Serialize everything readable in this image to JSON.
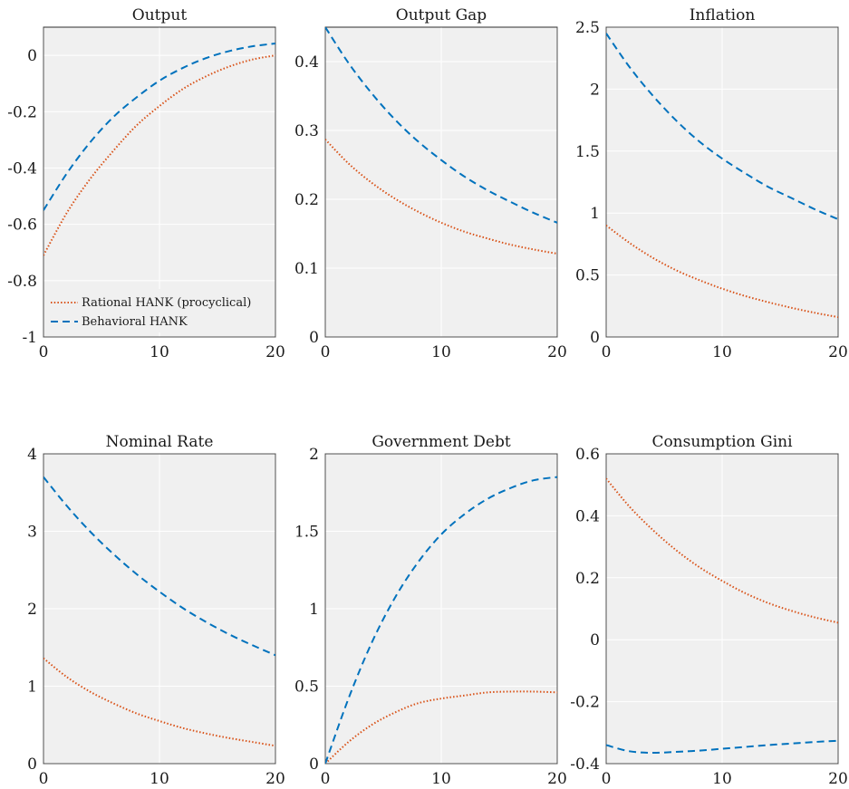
{
  "series_styles": [
    {
      "name": "Rational HANK (procyclical)",
      "color": "#d95319",
      "dash": "dotted"
    },
    {
      "name": "Behavioral HANK",
      "color": "#0072bd",
      "dash": "dashed"
    }
  ],
  "chart_data": [
    {
      "type": "line",
      "title": "Output",
      "xlim": [
        0,
        20
      ],
      "ylim": [
        -1,
        0.1
      ],
      "xticks": [
        0,
        10,
        20
      ],
      "yticks": [
        -1,
        -0.8,
        -0.6,
        -0.4,
        -0.2,
        0
      ],
      "ytick_labels": [
        "-1",
        "-0.8",
        "-0.6",
        "-0.4",
        "-0.2",
        "0"
      ],
      "grid": true,
      "legend": "bottom-left",
      "x": [
        0,
        2,
        4,
        6,
        8,
        10,
        12,
        14,
        16,
        18,
        20
      ],
      "series": [
        {
          "name": "Rational HANK (procyclical)",
          "values": [
            -0.71,
            -0.56,
            -0.44,
            -0.34,
            -0.25,
            -0.18,
            -0.12,
            -0.075,
            -0.04,
            -0.015,
            0.0
          ]
        },
        {
          "name": "Behavioral HANK",
          "values": [
            -0.55,
            -0.42,
            -0.31,
            -0.22,
            -0.15,
            -0.09,
            -0.045,
            -0.01,
            0.015,
            0.032,
            0.042
          ]
        }
      ]
    },
    {
      "type": "line",
      "title": "Output Gap",
      "xlim": [
        0,
        20
      ],
      "ylim": [
        0,
        0.45
      ],
      "xticks": [
        0,
        10,
        20
      ],
      "yticks": [
        0,
        0.1,
        0.2,
        0.3,
        0.4
      ],
      "ytick_labels": [
        "0",
        "0.1",
        "0.2",
        "0.3",
        "0.4"
      ],
      "grid": true,
      "x": [
        0,
        2,
        4,
        6,
        8,
        10,
        12,
        14,
        16,
        18,
        20
      ],
      "series": [
        {
          "name": "Rational HANK (procyclical)",
          "values": [
            0.287,
            0.252,
            0.224,
            0.201,
            0.182,
            0.166,
            0.153,
            0.143,
            0.134,
            0.127,
            0.121
          ]
        },
        {
          "name": "Behavioral HANK",
          "values": [
            0.45,
            0.398,
            0.354,
            0.316,
            0.284,
            0.257,
            0.233,
            0.213,
            0.196,
            0.18,
            0.166
          ]
        }
      ]
    },
    {
      "type": "line",
      "title": "Inflation",
      "xlim": [
        0,
        20
      ],
      "ylim": [
        0,
        2.5
      ],
      "xticks": [
        0,
        10,
        20
      ],
      "yticks": [
        0,
        0.5,
        1,
        1.5,
        2,
        2.5
      ],
      "ytick_labels": [
        "0",
        "0.5",
        "1",
        "1.5",
        "2",
        "2.5"
      ],
      "grid": true,
      "x": [
        0,
        2,
        4,
        6,
        8,
        10,
        12,
        14,
        16,
        18,
        20
      ],
      "series": [
        {
          "name": "Rational HANK (procyclical)",
          "values": [
            0.9,
            0.76,
            0.64,
            0.54,
            0.46,
            0.39,
            0.33,
            0.28,
            0.235,
            0.195,
            0.16
          ]
        },
        {
          "name": "Behavioral HANK",
          "values": [
            2.45,
            2.18,
            1.95,
            1.75,
            1.58,
            1.44,
            1.32,
            1.21,
            1.12,
            1.03,
            0.95
          ]
        }
      ]
    },
    {
      "type": "line",
      "title": "Nominal Rate",
      "xlim": [
        0,
        20
      ],
      "ylim": [
        0,
        4
      ],
      "xticks": [
        0,
        10,
        20
      ],
      "yticks": [
        0,
        1,
        2,
        3,
        4
      ],
      "ytick_labels": [
        "0",
        "1",
        "2",
        "3",
        "4"
      ],
      "grid": true,
      "x": [
        0,
        2,
        4,
        6,
        8,
        10,
        12,
        14,
        16,
        18,
        20
      ],
      "series": [
        {
          "name": "Rational HANK (procyclical)",
          "values": [
            1.36,
            1.12,
            0.93,
            0.78,
            0.65,
            0.55,
            0.46,
            0.39,
            0.33,
            0.28,
            0.23
          ]
        },
        {
          "name": "Behavioral HANK",
          "values": [
            3.7,
            3.33,
            3.0,
            2.71,
            2.45,
            2.22,
            2.01,
            1.83,
            1.67,
            1.53,
            1.4
          ]
        }
      ]
    },
    {
      "type": "line",
      "title": "Government Debt",
      "xlim": [
        0,
        20
      ],
      "ylim": [
        0,
        2
      ],
      "xticks": [
        0,
        10,
        20
      ],
      "yticks": [
        0,
        0.5,
        1,
        1.5,
        2
      ],
      "ytick_labels": [
        "0",
        "0.5",
        "1",
        "1.5",
        "2"
      ],
      "grid": true,
      "x": [
        0,
        2,
        4,
        6,
        8,
        10,
        12,
        14,
        16,
        18,
        20
      ],
      "series": [
        {
          "name": "Rational HANK (procyclical)",
          "values": [
            0.0,
            0.14,
            0.25,
            0.33,
            0.39,
            0.42,
            0.44,
            0.46,
            0.465,
            0.465,
            0.46
          ]
        },
        {
          "name": "Behavioral HANK",
          "values": [
            0.0,
            0.42,
            0.78,
            1.07,
            1.3,
            1.48,
            1.61,
            1.71,
            1.78,
            1.83,
            1.85
          ]
        }
      ]
    },
    {
      "type": "line",
      "title": "Consumption Gini",
      "xlim": [
        0,
        20
      ],
      "ylim": [
        -0.4,
        0.6
      ],
      "xticks": [
        0,
        10,
        20
      ],
      "yticks": [
        -0.4,
        -0.2,
        0,
        0.2,
        0.4,
        0.6
      ],
      "ytick_labels": [
        "-0.4",
        "-0.2",
        "0",
        "0.2",
        "0.4",
        "0.6"
      ],
      "grid": true,
      "x": [
        0,
        2,
        4,
        6,
        8,
        10,
        12,
        14,
        16,
        18,
        20
      ],
      "series": [
        {
          "name": "Rational HANK (procyclical)",
          "values": [
            0.52,
            0.43,
            0.355,
            0.29,
            0.235,
            0.19,
            0.15,
            0.118,
            0.093,
            0.072,
            0.055
          ]
        },
        {
          "name": "Behavioral HANK",
          "values": [
            -0.34,
            -0.36,
            -0.365,
            -0.362,
            -0.358,
            -0.352,
            -0.346,
            -0.34,
            -0.335,
            -0.33,
            -0.326
          ]
        }
      ]
    }
  ]
}
